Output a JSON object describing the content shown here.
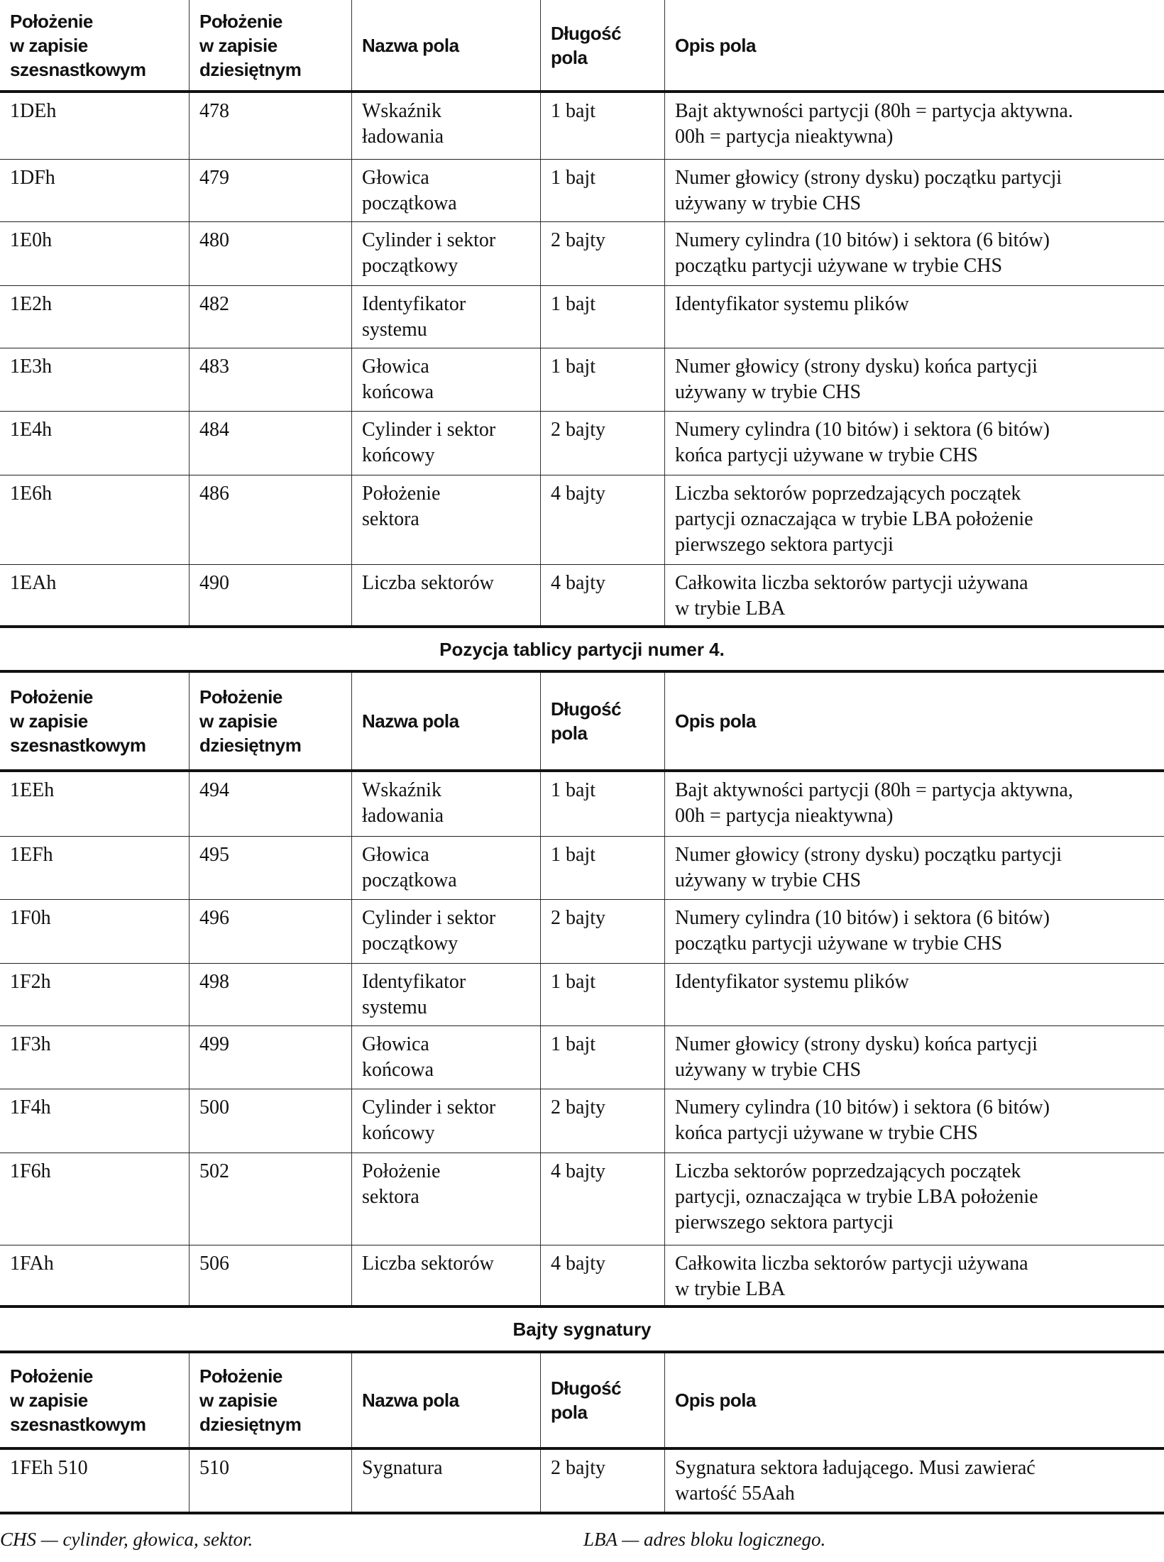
{
  "headers": [
    "Położenie\nw zapisie\nszesnastkowym",
    "Położenie\nw zapisie\ndziesiętnym",
    "Nazwa pola",
    "Długość\npola",
    "Opis pola"
  ],
  "table1": {
    "rows": [
      [
        "1DEh",
        "478",
        "Wskaźnik\nładowania",
        "1 bajt",
        "Bajt aktywności partycji (80h = partycja aktywna.\n00h = partycja nieaktywna)"
      ],
      [
        "1DFh",
        "479",
        "Głowica\npoczątkowa",
        "1 bajt",
        "Numer głowicy (strony dysku) początku partycji\nużywany w trybie CHS"
      ],
      [
        "1E0h",
        "480",
        "Cylinder i sektor\npoczątkowy",
        "2 bajty",
        "Numery cylindra (10 bitów) i sektora (6 bitów)\npoczątku partycji używane w trybie CHS"
      ],
      [
        "1E2h",
        "482",
        "Identyfikator\nsystemu",
        "1 bajt",
        "Identyfikator systemu plików"
      ],
      [
        "1E3h",
        "483",
        "Głowica\nkońcowa",
        "1 bajt",
        "Numer głowicy (strony dysku) końca partycji\nużywany w trybie CHS"
      ],
      [
        "1E4h",
        "484",
        "Cylinder i sektor\nkońcowy",
        "2 bajty",
        "Numery cylindra (10 bitów) i sektora (6 bitów)\nkońca partycji używane w trybie CHS"
      ],
      [
        "1E6h",
        "486",
        "Położenie\nsektora",
        "4 bajty",
        "Liczba sektorów poprzedzających początek\npartycji oznaczająca w trybie LBA położenie\npierwszego sektora partycji"
      ],
      [
        "1EAh",
        "490",
        "Liczba sektorów",
        "4 bajty",
        "Całkowita liczba sektorów partycji używana\nw trybie LBA"
      ]
    ]
  },
  "section2_title": "Pozycja tablicy partycji numer 4.",
  "table2": {
    "rows": [
      [
        "1EEh",
        "494",
        "Wskaźnik\nładowania",
        "1 bajt",
        "Bajt aktywności partycji (80h = partycja aktywna,\n00h = partycja nieaktywna)"
      ],
      [
        "1EFh",
        "495",
        "Głowica\npoczątkowa",
        "1 bajt",
        "Numer głowicy (strony dysku) początku partycji\nużywany w trybie CHS"
      ],
      [
        "1F0h",
        "496",
        "Cylinder i sektor\npoczątkowy",
        "2 bajty",
        "Numery cylindra (10 bitów) i sektora (6 bitów)\npoczątku partycji używane w trybie CHS"
      ],
      [
        "1F2h",
        "498",
        "Identyfikator\nsystemu",
        "1 bajt",
        "Identyfikator systemu plików"
      ],
      [
        "1F3h",
        "499",
        "Głowica\nkońcowa",
        "1 bajt",
        "Numer głowicy (strony dysku) końca partycji\nużywany w trybie CHS"
      ],
      [
        "1F4h",
        "500",
        "Cylinder i sektor\nkońcowy",
        "2 bajty",
        "Numery cylindra (10 bitów) i sektora (6 bitów)\nkońca partycji używane w trybie CHS"
      ],
      [
        "1F6h",
        "502",
        "Położenie\nsektora",
        "4 bajty",
        "Liczba sektorów poprzedzających początek\npartycji, oznaczająca w trybie LBA położenie\npierwszego sektora partycji"
      ],
      [
        "1FAh",
        "506",
        "Liczba sektorów",
        "4 bajty",
        "Całkowita liczba sektorów partycji używana\nw trybie LBA"
      ]
    ]
  },
  "section3_title": "Bajty sygnatury",
  "table3": {
    "rows": [
      [
        "1FEh 510",
        "510",
        "Sygnatura",
        "2 bajty",
        "Sygnatura sektora ładującego. Musi zawierać\nwartość 55Aah"
      ]
    ]
  },
  "footnotes": {
    "chs": "CHS — cylinder, głowica, sektor.",
    "lba": "LBA — adres bloku logicznego."
  }
}
